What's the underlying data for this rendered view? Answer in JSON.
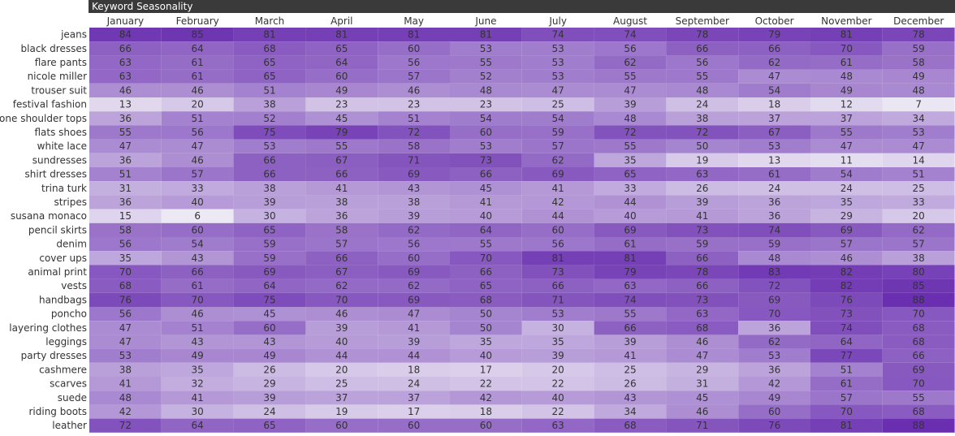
{
  "chart_data": {
    "type": "heatmap",
    "title": "Keyword Seasonality",
    "columns": [
      "January",
      "February",
      "March",
      "April",
      "May",
      "June",
      "July",
      "August",
      "September",
      "October",
      "November",
      "December"
    ],
    "rows": [
      "jeans",
      "black dresses",
      "flare pants",
      "nicole miller",
      "trouser suit",
      "festival fashion",
      "one shoulder tops",
      "flats shoes",
      "white lace",
      "sundresses",
      "shirt dresses",
      "trina turk",
      "stripes",
      "susana monaco",
      "pencil skirts",
      "denim",
      "cover ups",
      "animal print",
      "vests",
      "handbags",
      "poncho",
      "layering clothes",
      "leggings",
      "party dresses",
      "cashmere",
      "scarves",
      "suede",
      "riding boots",
      "leather"
    ],
    "values": [
      [
        84,
        85,
        81,
        81,
        81,
        81,
        74,
        74,
        78,
        79,
        81,
        78
      ],
      [
        66,
        64,
        68,
        65,
        60,
        53,
        53,
        56,
        66,
        66,
        70,
        59
      ],
      [
        63,
        61,
        65,
        64,
        56,
        55,
        53,
        62,
        56,
        62,
        61,
        58
      ],
      [
        63,
        61,
        65,
        60,
        57,
        52,
        53,
        55,
        55,
        47,
        48,
        49
      ],
      [
        46,
        46,
        51,
        49,
        46,
        48,
        47,
        47,
        48,
        54,
        49,
        48
      ],
      [
        13,
        20,
        38,
        23,
        23,
        23,
        25,
        39,
        24,
        18,
        12,
        7
      ],
      [
        36,
        51,
        52,
        45,
        51,
        54,
        54,
        48,
        38,
        37,
        37,
        34
      ],
      [
        55,
        56,
        75,
        79,
        72,
        60,
        59,
        72,
        72,
        67,
        55,
        53
      ],
      [
        47,
        47,
        53,
        55,
        58,
        53,
        57,
        55,
        50,
        53,
        47,
        47
      ],
      [
        36,
        46,
        66,
        67,
        71,
        73,
        62,
        35,
        19,
        13,
        11,
        14
      ],
      [
        51,
        57,
        66,
        66,
        69,
        66,
        69,
        65,
        63,
        61,
        54,
        51
      ],
      [
        31,
        33,
        38,
        41,
        43,
        45,
        41,
        33,
        26,
        24,
        24,
        25
      ],
      [
        36,
        40,
        39,
        38,
        38,
        41,
        42,
        44,
        39,
        36,
        35,
        33
      ],
      [
        15,
        6,
        30,
        36,
        39,
        40,
        44,
        40,
        41,
        36,
        29,
        20
      ],
      [
        58,
        60,
        65,
        58,
        62,
        64,
        60,
        69,
        73,
        74,
        69,
        62
      ],
      [
        56,
        54,
        59,
        57,
        56,
        55,
        56,
        61,
        59,
        59,
        57,
        57
      ],
      [
        35,
        43,
        59,
        66,
        60,
        70,
        81,
        81,
        66,
        48,
        46,
        38
      ],
      [
        70,
        66,
        69,
        67,
        69,
        66,
        73,
        79,
        78,
        83,
        82,
        80
      ],
      [
        68,
        61,
        64,
        62,
        62,
        65,
        66,
        63,
        66,
        72,
        82,
        85
      ],
      [
        76,
        70,
        75,
        70,
        69,
        68,
        71,
        74,
        73,
        69,
        76,
        88
      ],
      [
        56,
        46,
        45,
        46,
        47,
        50,
        53,
        55,
        63,
        70,
        73,
        70
      ],
      [
        47,
        51,
        60,
        39,
        41,
        50,
        30,
        66,
        68,
        36,
        74,
        68
      ],
      [
        47,
        43,
        43,
        40,
        39,
        35,
        35,
        39,
        46,
        62,
        64,
        68
      ],
      [
        53,
        49,
        49,
        44,
        44,
        40,
        39,
        41,
        47,
        53,
        77,
        66
      ],
      [
        38,
        35,
        26,
        20,
        18,
        17,
        20,
        25,
        29,
        36,
        51,
        69
      ],
      [
        41,
        32,
        29,
        25,
        24,
        22,
        22,
        26,
        31,
        42,
        61,
        70
      ],
      [
        48,
        41,
        39,
        37,
        37,
        42,
        40,
        43,
        45,
        49,
        57,
        55
      ],
      [
        42,
        30,
        24,
        19,
        17,
        18,
        22,
        34,
        46,
        60,
        70,
        68
      ],
      [
        72,
        64,
        65,
        60,
        60,
        60,
        63,
        68,
        71,
        76,
        81,
        88
      ]
    ],
    "range": [
      6,
      88
    ],
    "colors": {
      "low": "#ece8f4",
      "high": "#6a2fb0",
      "text": "#333333",
      "grid": "#ffffff"
    }
  }
}
